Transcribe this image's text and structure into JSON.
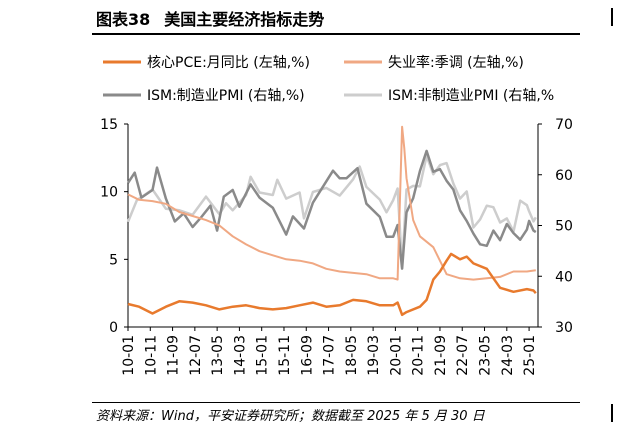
{
  "figure": {
    "number": "图表38",
    "title": "美国主要经济指标走势",
    "source": "资料来源：Wind，平安证券研究所；数据截至 2025 年 5 月 30 日"
  },
  "chart_data": {
    "type": "line",
    "x_tick_labels": [
      "10-01",
      "10-11",
      "11-09",
      "12-07",
      "13-05",
      "14-03",
      "15-01",
      "15-11",
      "16-09",
      "17-07",
      "18-05",
      "19-03",
      "20-01",
      "20-11",
      "21-09",
      "22-07",
      "23-05",
      "24-03",
      "25-01"
    ],
    "x_range": [
      "2010-01",
      "2025-05"
    ],
    "y_left": {
      "ticks": [
        "0",
        "5",
        "10",
        "15"
      ],
      "range": [
        0,
        15
      ]
    },
    "y_right": {
      "ticks": [
        "30",
        "40",
        "50",
        "60",
        "70"
      ],
      "range": [
        30,
        70
      ]
    },
    "legend_placement": "top",
    "grid": false,
    "series": [
      {
        "name": "核心PCE:月同比 (左轴,%)",
        "axis": "left",
        "color": "#e87a2d",
        "width": 2.5,
        "points": [
          [
            "2010-01",
            1.7
          ],
          [
            "2010-06",
            1.5
          ],
          [
            "2010-12",
            1.0
          ],
          [
            "2011-06",
            1.5
          ],
          [
            "2011-12",
            1.9
          ],
          [
            "2012-06",
            1.8
          ],
          [
            "2012-12",
            1.6
          ],
          [
            "2013-06",
            1.3
          ],
          [
            "2013-12",
            1.5
          ],
          [
            "2014-06",
            1.6
          ],
          [
            "2014-12",
            1.4
          ],
          [
            "2015-06",
            1.3
          ],
          [
            "2015-12",
            1.4
          ],
          [
            "2016-06",
            1.6
          ],
          [
            "2016-12",
            1.8
          ],
          [
            "2017-06",
            1.5
          ],
          [
            "2017-12",
            1.6
          ],
          [
            "2018-06",
            2.0
          ],
          [
            "2018-12",
            1.9
          ],
          [
            "2019-06",
            1.6
          ],
          [
            "2019-12",
            1.6
          ],
          [
            "2020-02",
            1.8
          ],
          [
            "2020-04",
            0.9
          ],
          [
            "2020-06",
            1.1
          ],
          [
            "2020-12",
            1.5
          ],
          [
            "2021-03",
            2.0
          ],
          [
            "2021-06",
            3.5
          ],
          [
            "2021-09",
            4.1
          ],
          [
            "2021-12",
            4.9
          ],
          [
            "2022-02",
            5.4
          ],
          [
            "2022-06",
            5.0
          ],
          [
            "2022-09",
            5.2
          ],
          [
            "2022-12",
            4.7
          ],
          [
            "2023-06",
            4.3
          ],
          [
            "2023-12",
            2.9
          ],
          [
            "2024-06",
            2.6
          ],
          [
            "2024-12",
            2.8
          ],
          [
            "2025-03",
            2.7
          ],
          [
            "2025-04",
            2.5
          ]
        ]
      },
      {
        "name": "失业率:季调 (左轴,%)",
        "axis": "left",
        "color": "#f0a883",
        "width": 2,
        "points": [
          [
            "2010-01",
            9.8
          ],
          [
            "2010-06",
            9.4
          ],
          [
            "2010-12",
            9.3
          ],
          [
            "2011-06",
            9.1
          ],
          [
            "2011-12",
            8.5
          ],
          [
            "2012-06",
            8.2
          ],
          [
            "2012-12",
            7.9
          ],
          [
            "2013-06",
            7.5
          ],
          [
            "2013-12",
            6.7
          ],
          [
            "2014-06",
            6.1
          ],
          [
            "2014-12",
            5.6
          ],
          [
            "2015-06",
            5.3
          ],
          [
            "2015-12",
            5.0
          ],
          [
            "2016-06",
            4.9
          ],
          [
            "2016-12",
            4.7
          ],
          [
            "2017-06",
            4.3
          ],
          [
            "2017-12",
            4.1
          ],
          [
            "2018-06",
            4.0
          ],
          [
            "2018-12",
            3.9
          ],
          [
            "2019-06",
            3.6
          ],
          [
            "2019-12",
            3.6
          ],
          [
            "2020-02",
            3.5
          ],
          [
            "2020-04",
            14.8
          ],
          [
            "2020-05",
            13.2
          ],
          [
            "2020-06",
            11.0
          ],
          [
            "2020-09",
            7.9
          ],
          [
            "2020-12",
            6.7
          ],
          [
            "2021-06",
            5.9
          ],
          [
            "2021-12",
            3.9
          ],
          [
            "2022-06",
            3.6
          ],
          [
            "2022-12",
            3.5
          ],
          [
            "2023-06",
            3.6
          ],
          [
            "2023-12",
            3.7
          ],
          [
            "2024-06",
            4.1
          ],
          [
            "2024-12",
            4.1
          ],
          [
            "2025-04",
            4.2
          ]
        ]
      },
      {
        "name": "ISM:制造业PMI (右轴,%)",
        "axis": "right",
        "color": "#8a8a8a",
        "width": 2.5,
        "points": [
          [
            "2010-01",
            58.4
          ],
          [
            "2010-04",
            60.4
          ],
          [
            "2010-07",
            55.5
          ],
          [
            "2010-12",
            57.0
          ],
          [
            "2011-02",
            61.4
          ],
          [
            "2011-06",
            55.3
          ],
          [
            "2011-10",
            50.8
          ],
          [
            "2012-02",
            52.4
          ],
          [
            "2012-06",
            49.7
          ],
          [
            "2012-10",
            51.7
          ],
          [
            "2013-02",
            53.9
          ],
          [
            "2013-05",
            49.0
          ],
          [
            "2013-08",
            55.7
          ],
          [
            "2013-12",
            57.0
          ],
          [
            "2014-03",
            53.7
          ],
          [
            "2014-08",
            58.1
          ],
          [
            "2014-12",
            55.5
          ],
          [
            "2015-06",
            53.5
          ],
          [
            "2015-12",
            48.2
          ],
          [
            "2016-03",
            51.8
          ],
          [
            "2016-08",
            49.4
          ],
          [
            "2016-12",
            54.5
          ],
          [
            "2017-09",
            60.8
          ],
          [
            "2017-12",
            59.3
          ],
          [
            "2018-03",
            59.3
          ],
          [
            "2018-08",
            61.3
          ],
          [
            "2018-12",
            54.3
          ],
          [
            "2019-06",
            51.7
          ],
          [
            "2019-09",
            47.8
          ],
          [
            "2019-12",
            47.8
          ],
          [
            "2020-02",
            50.1
          ],
          [
            "2020-04",
            41.5
          ],
          [
            "2020-06",
            52.6
          ],
          [
            "2020-09",
            55.4
          ],
          [
            "2020-12",
            60.7
          ],
          [
            "2021-03",
            64.7
          ],
          [
            "2021-06",
            60.6
          ],
          [
            "2021-09",
            61.1
          ],
          [
            "2021-12",
            58.8
          ],
          [
            "2022-03",
            57.1
          ],
          [
            "2022-06",
            53.0
          ],
          [
            "2022-09",
            50.9
          ],
          [
            "2022-12",
            48.4
          ],
          [
            "2023-03",
            46.3
          ],
          [
            "2023-06",
            46.0
          ],
          [
            "2023-09",
            49.0
          ],
          [
            "2023-12",
            47.1
          ],
          [
            "2024-03",
            50.3
          ],
          [
            "2024-06",
            48.5
          ],
          [
            "2024-09",
            47.2
          ],
          [
            "2024-12",
            49.2
          ],
          [
            "2025-01",
            50.9
          ],
          [
            "2025-03",
            49.0
          ],
          [
            "2025-04",
            48.7
          ]
        ]
      },
      {
        "name": "ISM:非制造业PMI (右轴,%",
        "axis": "right",
        "color": "#cdcdcd",
        "width": 2.5,
        "points": [
          [
            "2010-01",
            50.7
          ],
          [
            "2010-05",
            55.0
          ],
          [
            "2010-12",
            57.1
          ],
          [
            "2011-06",
            53.3
          ],
          [
            "2011-12",
            53.0
          ],
          [
            "2012-06",
            52.1
          ],
          [
            "2012-12",
            55.7
          ],
          [
            "2013-06",
            52.2
          ],
          [
            "2013-09",
            54.4
          ],
          [
            "2013-12",
            53.0
          ],
          [
            "2014-06",
            56.0
          ],
          [
            "2014-08",
            59.6
          ],
          [
            "2014-12",
            56.5
          ],
          [
            "2015-06",
            56.0
          ],
          [
            "2015-08",
            59.0
          ],
          [
            "2015-12",
            55.3
          ],
          [
            "2016-06",
            56.5
          ],
          [
            "2016-08",
            51.4
          ],
          [
            "2016-12",
            56.6
          ],
          [
            "2017-06",
            57.4
          ],
          [
            "2017-12",
            55.9
          ],
          [
            "2018-06",
            59.1
          ],
          [
            "2018-09",
            61.6
          ],
          [
            "2018-12",
            57.6
          ],
          [
            "2019-06",
            55.1
          ],
          [
            "2019-09",
            52.6
          ],
          [
            "2019-12",
            55.0
          ],
          [
            "2020-02",
            57.3
          ],
          [
            "2020-04",
            41.8
          ],
          [
            "2020-06",
            57.1
          ],
          [
            "2020-09",
            57.8
          ],
          [
            "2020-12",
            57.7
          ],
          [
            "2021-03",
            63.7
          ],
          [
            "2021-06",
            60.1
          ],
          [
            "2021-09",
            61.9
          ],
          [
            "2021-12",
            62.3
          ],
          [
            "2022-03",
            58.3
          ],
          [
            "2022-06",
            55.3
          ],
          [
            "2022-09",
            56.7
          ],
          [
            "2022-12",
            49.6
          ],
          [
            "2023-03",
            51.2
          ],
          [
            "2023-06",
            53.9
          ],
          [
            "2023-09",
            53.6
          ],
          [
            "2023-12",
            50.6
          ],
          [
            "2024-03",
            51.4
          ],
          [
            "2024-06",
            48.8
          ],
          [
            "2024-09",
            54.9
          ],
          [
            "2024-12",
            54.0
          ],
          [
            "2025-01",
            52.8
          ],
          [
            "2025-03",
            50.8
          ],
          [
            "2025-04",
            51.6
          ]
        ]
      }
    ]
  }
}
